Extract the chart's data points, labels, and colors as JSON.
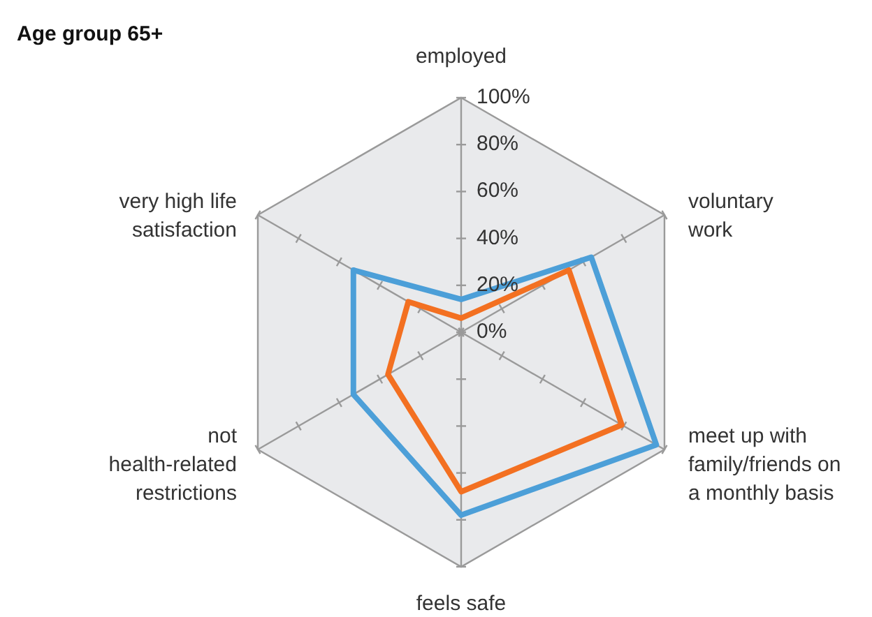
{
  "chart_data": {
    "type": "radar",
    "title": "Age group 65+",
    "categories": [
      "employed",
      "voluntary\nwork",
      "meet up with\nfamily/friends on\na monthly basis",
      "feels safe",
      "not\nhealth-related\nrestrictions",
      "very high life\nsatisfaction"
    ],
    "series": [
      {
        "color": "#4c9fd8",
        "values": [
          14,
          64,
          96,
          78,
          53,
          53
        ]
      },
      {
        "color": "#f37021",
        "values": [
          6,
          53,
          79,
          68,
          36,
          26
        ]
      }
    ],
    "ylim": [
      0,
      100
    ],
    "yticks": [
      {
        "value": 0,
        "label": "0%"
      },
      {
        "value": 20,
        "label": "20%"
      },
      {
        "value": 40,
        "label": "40%"
      },
      {
        "value": 60,
        "label": "60%"
      },
      {
        "value": 80,
        "label": "80%"
      },
      {
        "value": 100,
        "label": "100%"
      }
    ]
  }
}
